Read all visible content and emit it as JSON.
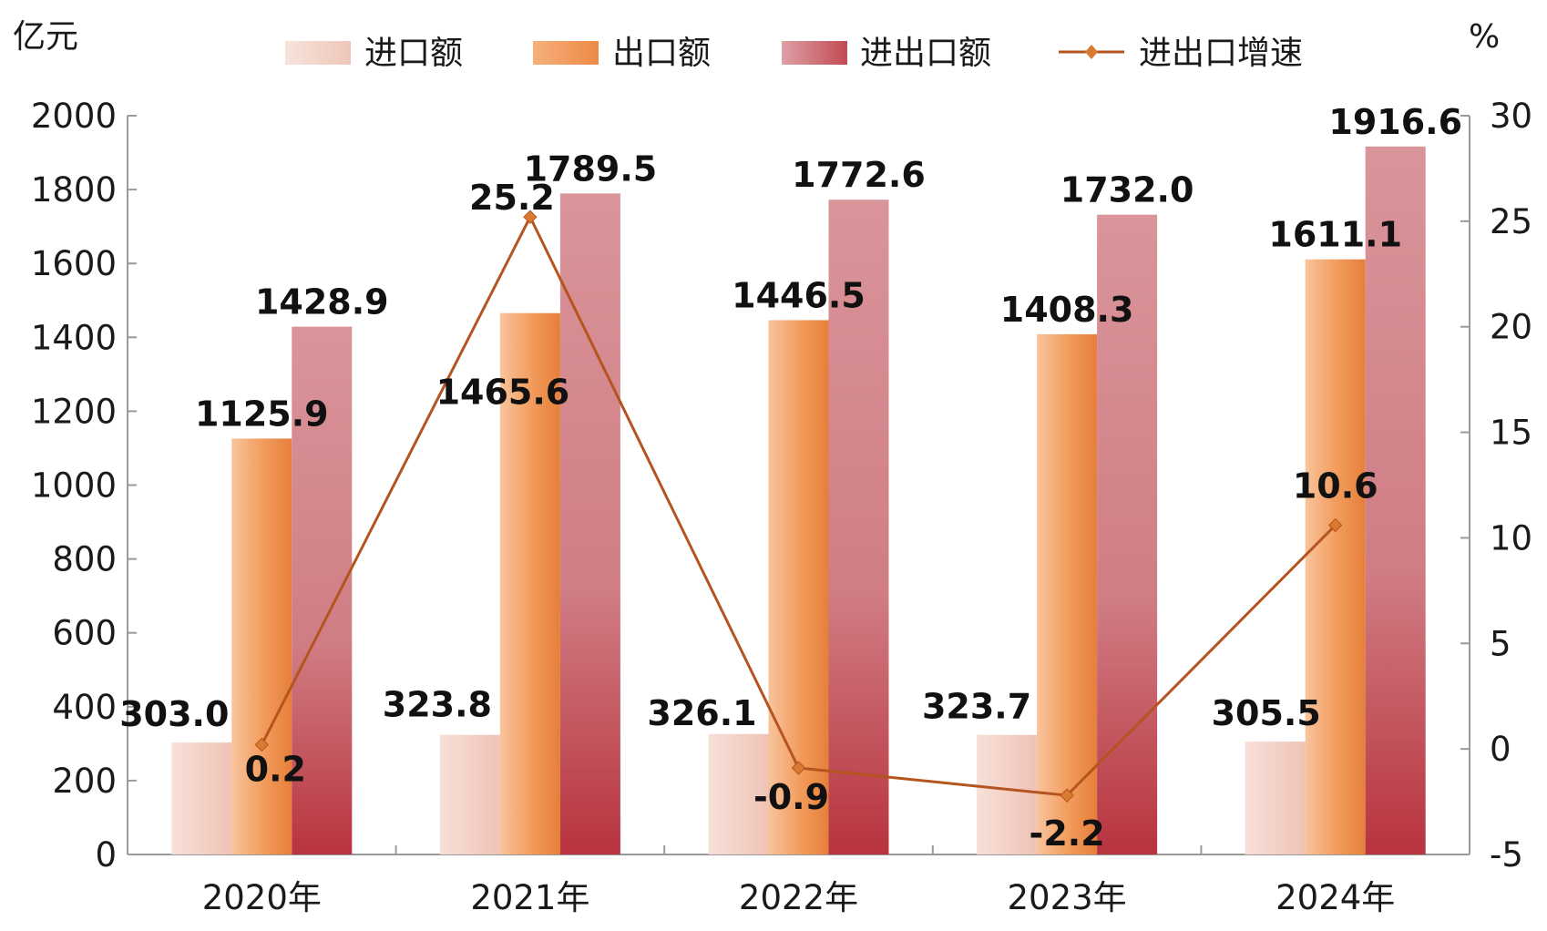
{
  "chart_data": {
    "type": "bar",
    "categories": [
      "2020年",
      "2021年",
      "2022年",
      "2023年",
      "2024年"
    ],
    "y_left_unit": "亿元",
    "y_right_unit": "%",
    "ylim_left": [
      0,
      2000
    ],
    "ylim_right": [
      -5,
      30
    ],
    "left_ticks": [
      "0",
      "200",
      "400",
      "600",
      "800",
      "1000",
      "1200",
      "1400",
      "1600",
      "1800",
      "2000"
    ],
    "right_ticks": [
      "-5",
      "0",
      "5",
      "10",
      "15",
      "20",
      "25",
      "30"
    ],
    "grid": false,
    "legend_position": "top",
    "series": [
      {
        "name": "进口额",
        "type": "bar",
        "axis": "left",
        "values": [
          303.0,
          323.8,
          326.1,
          323.7,
          305.5
        ],
        "labels": [
          "303.0",
          "323.8",
          "326.1",
          "323.7",
          "305.5"
        ],
        "color": "#f3cfc4"
      },
      {
        "name": "出口额",
        "type": "bar",
        "axis": "left",
        "values": [
          1125.9,
          1465.6,
          1446.5,
          1408.3,
          1611.1
        ],
        "labels": [
          "1125.9",
          "1465.6",
          "1446.5",
          "1408.3",
          "1611.1"
        ],
        "color": "#f0934f"
      },
      {
        "name": "进出口额",
        "type": "bar",
        "axis": "left",
        "values": [
          1428.9,
          1789.5,
          1772.6,
          1732.0,
          1916.6
        ],
        "labels": [
          "1428.9",
          "1789.5",
          "1772.6",
          "1732.0",
          "1916.6"
        ],
        "color": "#c9545c"
      },
      {
        "name": "进出口增速",
        "type": "line",
        "axis": "right",
        "values": [
          0.2,
          25.2,
          -0.9,
          -2.2,
          10.6
        ],
        "labels": [
          "0.2",
          "25.2",
          "-0.9",
          "-2.2",
          "10.6"
        ],
        "color": "#b5541f"
      }
    ]
  }
}
